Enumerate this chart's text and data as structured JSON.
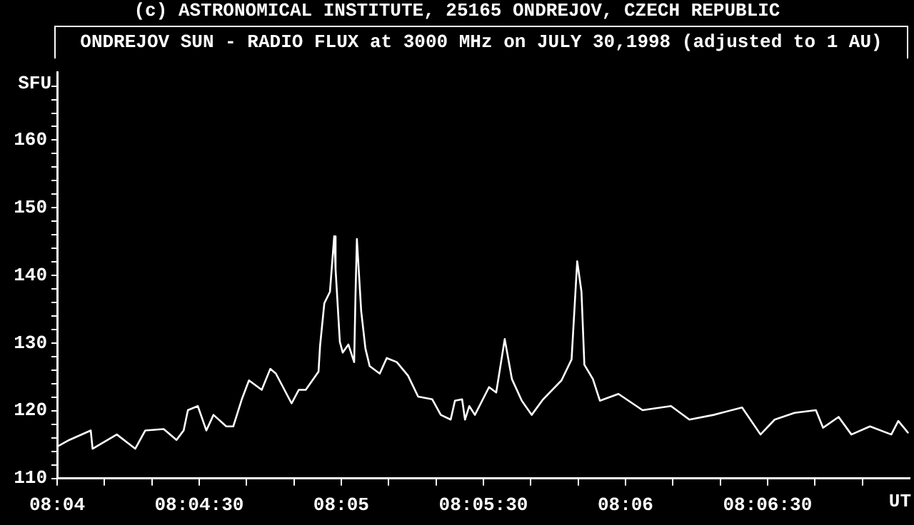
{
  "chart_data": {
    "type": "line",
    "title": "ONDREJOV SUN - RADIO FLUX at 3000 MHz on JULY 30,1998 (adjusted to 1 AU)",
    "annotations": [
      "(c) ASTRONOMICAL INSTITUTE, 25165 ONDREJOV, CZECH REPUBLIC"
    ],
    "ylabel": "SFU",
    "xlabel": "UT",
    "x": [
      8.06667,
      8.06739,
      8.06864,
      8.06875,
      8.07017,
      8.07125,
      8.07184,
      8.07292,
      8.07367,
      8.07409,
      8.07434,
      8.07492,
      8.07542,
      8.07584,
      8.07659,
      8.077,
      8.07725,
      8.0775,
      8.07792,
      8.07867,
      8.07917,
      8.0795,
      8.08042,
      8.08084,
      8.08125,
      8.082,
      8.08209,
      8.08234,
      8.08267,
      8.08292,
      8.083,
      8.08325,
      8.08342,
      8.08375,
      8.08409,
      8.08417,
      8.08425,
      8.0845,
      8.08475,
      8.085,
      8.08559,
      8.086,
      8.08659,
      8.08725,
      8.08784,
      8.08867,
      8.08917,
      8.08975,
      8.09,
      8.09042,
      8.09059,
      8.09084,
      8.09117,
      8.092,
      8.09242,
      8.09292,
      8.09334,
      8.09392,
      8.0945,
      8.09517,
      8.09625,
      8.09684,
      8.09717,
      8.09742,
      8.09759,
      8.09809,
      8.0985,
      8.09959,
      8.101,
      8.10267,
      8.10375,
      8.10517,
      8.10684,
      8.10792,
      8.10875,
      8.10992,
      8.11117,
      8.11159,
      8.1125,
      8.11325,
      8.11434,
      8.11559,
      8.116,
      8.11659
    ],
    "series": [
      {
        "color": "#ffffff",
        "values": [
          114.7,
          115.7,
          117.1,
          114.4,
          116.5,
          114.4,
          117.1,
          117.3,
          115.7,
          117.1,
          120.1,
          120.7,
          117.1,
          119.4,
          117.7,
          117.7,
          119.7,
          121.7,
          124.5,
          123.1,
          126.2,
          125.5,
          121.1,
          123.1,
          123.1,
          125.8,
          129.6,
          135.9,
          137.6,
          145.8,
          140.9,
          130.2,
          128.6,
          129.8,
          127.2,
          137.3,
          145.4,
          134.8,
          129.2,
          126.6,
          125.5,
          127.8,
          127.2,
          125.2,
          122.1,
          121.7,
          119.4,
          118.7,
          121.5,
          121.7,
          118.7,
          120.7,
          119.4,
          123.5,
          122.7,
          130.6,
          124.7,
          121.5,
          119.4,
          121.7,
          124.5,
          127.6,
          142.1,
          137.6,
          126.8,
          124.7,
          121.5,
          122.5,
          120.1,
          120.7,
          118.7,
          119.4,
          120.5,
          116.5,
          118.7,
          119.7,
          120.1,
          117.5,
          119.1,
          116.5,
          117.7,
          116.5,
          118.5,
          116.7
        ]
      }
    ],
    "xlim": [
      8.06667,
      8.11667
    ],
    "xticks": [
      {
        "value": 8.06667,
        "label": "08:04"
      },
      {
        "value": 8.06944,
        "label": null
      },
      {
        "value": 8.07222,
        "label": null
      },
      {
        "value": 8.075,
        "label": "08:04:30"
      },
      {
        "value": 8.07778,
        "label": null
      },
      {
        "value": 8.08056,
        "label": null
      },
      {
        "value": 8.08333,
        "label": "08:05"
      },
      {
        "value": 8.08611,
        "label": null
      },
      {
        "value": 8.08889,
        "label": null
      },
      {
        "value": 8.09167,
        "label": "08:05:30"
      },
      {
        "value": 8.09444,
        "label": null
      },
      {
        "value": 8.09722,
        "label": null
      },
      {
        "value": 8.1,
        "label": "08:06"
      },
      {
        "value": 8.10278,
        "label": null
      },
      {
        "value": 8.10556,
        "label": null
      },
      {
        "value": 8.10833,
        "label": "08:06:30"
      },
      {
        "value": 8.11111,
        "label": null
      },
      {
        "value": 8.11389,
        "label": null
      }
    ],
    "ylim": [
      110,
      170
    ],
    "yticks": [
      110,
      {
        "value": 112,
        "label": null
      },
      {
        "value": 114,
        "label": null
      },
      {
        "value": 116,
        "label": null
      },
      {
        "value": 118,
        "label": null
      },
      120,
      {
        "value": 122,
        "label": null
      },
      {
        "value": 124,
        "label": null
      },
      {
        "value": 126,
        "label": null
      },
      {
        "value": 128,
        "label": null
      },
      130,
      {
        "value": 132,
        "label": null
      },
      {
        "value": 134,
        "label": null
      },
      {
        "value": 136,
        "label": null
      },
      {
        "value": 138,
        "label": null
      },
      140,
      {
        "value": 142,
        "label": null
      },
      {
        "value": 144,
        "label": null
      },
      {
        "value": 146,
        "label": null
      },
      {
        "value": 148,
        "label": null
      },
      150,
      {
        "value": 152,
        "label": null
      },
      {
        "value": 154,
        "label": null
      },
      {
        "value": 156,
        "label": null
      },
      {
        "value": 158,
        "label": null
      },
      160,
      {
        "value": 162,
        "label": null
      },
      {
        "value": 164,
        "label": null
      },
      {
        "value": 166,
        "label": null
      },
      {
        "value": 168,
        "label": null
      }
    ],
    "grid": false,
    "legend": false,
    "marker": "none",
    "line_style": "solid"
  }
}
